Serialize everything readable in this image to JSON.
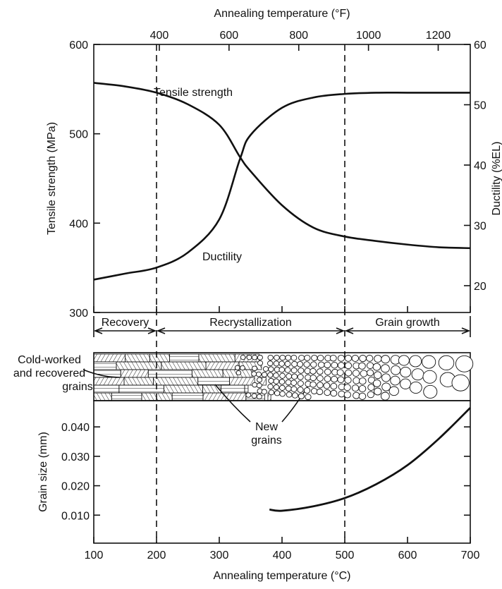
{
  "chart_data": [
    {
      "type": "line",
      "title": "",
      "xlabel": "Annealing temperature (°C)",
      "xlabel_top": "Annealing temperature (°F)",
      "ylabel": "Tensile strength (MPa)",
      "ylabel_right": "Ductility (%EL)",
      "xlim": [
        100,
        700
      ],
      "ylim": [
        300,
        600
      ],
      "ylim_right": [
        15.5,
        60
      ],
      "xticks_top": [
        400,
        600,
        800,
        1000,
        1200
      ],
      "yticks": [
        300,
        400,
        500,
        600
      ],
      "yticks_right": [
        20,
        30,
        40,
        50,
        60
      ],
      "series": [
        {
          "name": "Tensile strength",
          "axis": "left",
          "x": [
            100,
            150,
            200,
            250,
            300,
            333,
            350,
            400,
            450,
            500,
            550,
            600,
            650,
            700
          ],
          "values": [
            557,
            553,
            546,
            533,
            510,
            474,
            458,
            420,
            395,
            385,
            380,
            376,
            373,
            372
          ]
        },
        {
          "name": "Ductility",
          "axis": "right",
          "x": [
            100,
            150,
            200,
            250,
            300,
            333,
            350,
            400,
            450,
            500,
            550,
            600,
            650,
            700
          ],
          "values": [
            21,
            22,
            23,
            25.5,
            31,
            41,
            45,
            49.5,
            51.2,
            51.8,
            52,
            52,
            52,
            52
          ]
        }
      ],
      "boundaries_c": [
        200,
        500
      ],
      "regions": [
        "Recovery",
        "Recrystallization",
        "Grain growth"
      ],
      "annotations": [
        "Cold-worked and recovered grains",
        "New grains"
      ]
    },
    {
      "type": "line",
      "xlabel": "Annealing temperature (°C)",
      "ylabel": "Grain size (mm)",
      "xlim": [
        100,
        700
      ],
      "ylim": [
        0,
        0.048
      ],
      "xticks": [
        100,
        200,
        300,
        400,
        500,
        600,
        700
      ],
      "yticks": [
        "0.010",
        "0.020",
        "0.030",
        "0.040"
      ],
      "series": [
        {
          "name": "Grain size",
          "x": [
            380,
            400,
            450,
            500,
            550,
            600,
            650,
            700
          ],
          "values": [
            0.0119,
            0.0115,
            0.013,
            0.0158,
            0.0205,
            0.027,
            0.036,
            0.0465
          ]
        }
      ]
    }
  ]
}
